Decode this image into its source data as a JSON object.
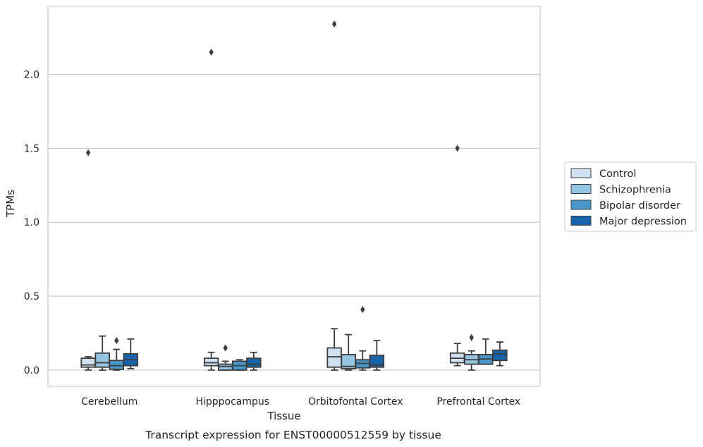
{
  "caption": "Transcript expression for ENST00000512559 by tissue",
  "chart_data": {
    "type": "box",
    "title": "",
    "xlabel": "Tissue",
    "ylabel": "TPMs",
    "ylim": [
      -0.11,
      2.46
    ],
    "yticks": [
      0.0,
      0.5,
      1.0,
      1.5,
      2.0
    ],
    "ytick_labels": [
      "0.0",
      "0.5",
      "1.0",
      "1.5",
      "2.0"
    ],
    "grid": "horizontal",
    "legend_position": "right",
    "categories": [
      "Cerebellum",
      "Hipppocampus",
      "Orbitofontal Cortex",
      "Prefrontal Cortex"
    ],
    "series": [
      {
        "name": "Control",
        "color": "#d0e1f2",
        "boxes": [
          {
            "whislo": 0.0,
            "q1": 0.02,
            "med": 0.035,
            "q3": 0.08,
            "whishi": 0.09,
            "fliers": [
              1.47
            ]
          },
          {
            "whislo": 0.0,
            "q1": 0.03,
            "med": 0.05,
            "q3": 0.08,
            "whishi": 0.12,
            "fliers": [
              2.15
            ]
          },
          {
            "whislo": 0.0,
            "q1": 0.02,
            "med": 0.09,
            "q3": 0.15,
            "whishi": 0.28,
            "fliers": [
              2.34
            ]
          },
          {
            "whislo": 0.03,
            "q1": 0.05,
            "med": 0.08,
            "q3": 0.115,
            "whishi": 0.18,
            "fliers": [
              1.5
            ]
          }
        ]
      },
      {
        "name": "Schizophrenia",
        "color": "#94c4df",
        "boxes": [
          {
            "whislo": 0.0,
            "q1": 0.02,
            "med": 0.05,
            "q3": 0.115,
            "whishi": 0.23,
            "fliers": []
          },
          {
            "whislo": 0.0,
            "q1": 0.0,
            "med": 0.025,
            "q3": 0.04,
            "whishi": 0.06,
            "fliers": [
              0.15
            ]
          },
          {
            "whislo": 0.0,
            "q1": 0.01,
            "med": 0.025,
            "q3": 0.105,
            "whishi": 0.24,
            "fliers": []
          },
          {
            "whislo": 0.0,
            "q1": 0.04,
            "med": 0.07,
            "q3": 0.105,
            "whishi": 0.13,
            "fliers": [
              0.22
            ]
          }
        ]
      },
      {
        "name": "Bipolar disorder",
        "color": "#4a98c9",
        "boxes": [
          {
            "whislo": 0.0,
            "q1": 0.005,
            "med": 0.03,
            "q3": 0.065,
            "whishi": 0.14,
            "fliers": [
              0.2
            ]
          },
          {
            "whislo": 0.0,
            "q1": 0.0,
            "med": 0.03,
            "q3": 0.06,
            "whishi": 0.07,
            "fliers": []
          },
          {
            "whislo": 0.0,
            "q1": 0.015,
            "med": 0.045,
            "q3": 0.07,
            "whishi": 0.13,
            "fliers": [
              0.41
            ]
          },
          {
            "whislo": 0.04,
            "q1": 0.04,
            "med": 0.075,
            "q3": 0.105,
            "whishi": 0.21,
            "fliers": []
          }
        ]
      },
      {
        "name": "Major depression",
        "color": "#1764ab",
        "boxes": [
          {
            "whislo": 0.01,
            "q1": 0.03,
            "med": 0.07,
            "q3": 0.11,
            "whishi": 0.21,
            "fliers": []
          },
          {
            "whislo": 0.0,
            "q1": 0.02,
            "med": 0.04,
            "q3": 0.08,
            "whishi": 0.12,
            "fliers": []
          },
          {
            "whislo": 0.0,
            "q1": 0.02,
            "med": 0.035,
            "q3": 0.1,
            "whishi": 0.2,
            "fliers": []
          },
          {
            "whislo": 0.03,
            "q1": 0.065,
            "med": 0.11,
            "q3": 0.135,
            "whishi": 0.19,
            "fliers": []
          }
        ]
      }
    ]
  }
}
